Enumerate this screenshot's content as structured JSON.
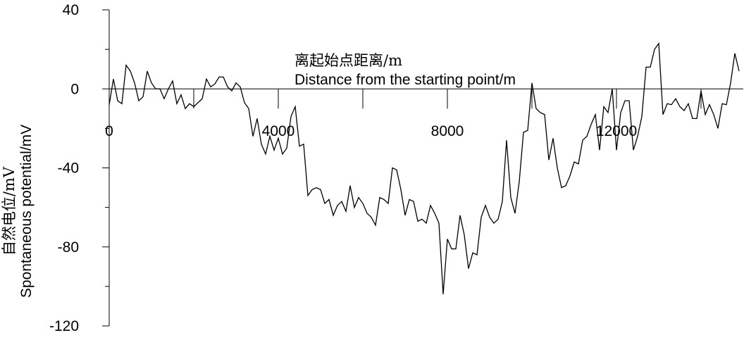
{
  "chart_data": {
    "type": "line",
    "x_label": [
      "离起始点距离/m",
      "Distance from the starting point/m"
    ],
    "y_label": [
      "自然电位/mV",
      "Spontaneous potential/mV"
    ],
    "xlim": [
      0,
      15000
    ],
    "xticks": [
      0,
      4000,
      8000,
      12000
    ],
    "xminor_ticks": [
      2000,
      6000,
      10000,
      14000
    ],
    "ylim": [
      -120,
      40
    ],
    "yticks": [
      40,
      0,
      -40,
      -80,
      -120
    ],
    "yminor_ticks": [
      20,
      -20,
      -60,
      -100
    ],
    "series": [
      {
        "color": "#000000",
        "x": [
          0,
          100,
          200,
          300,
          400,
          500,
          600,
          700,
          800,
          900,
          1000,
          1100,
          1200,
          1300,
          1400,
          1500,
          1600,
          1700,
          1800,
          1900,
          2000,
          2100,
          2200,
          2300,
          2400,
          2500,
          2600,
          2700,
          2800,
          2900,
          3000,
          3100,
          3200,
          3300,
          3400,
          3500,
          3600,
          3700,
          3800,
          3900,
          4000,
          4100,
          4200,
          4300,
          4400,
          4500,
          4600,
          4700,
          4800,
          4900,
          5000,
          5100,
          5200,
          5300,
          5400,
          5500,
          5600,
          5700,
          5800,
          5900,
          6000,
          6100,
          6200,
          6300,
          6400,
          6500,
          6600,
          6700,
          6800,
          6900,
          7000,
          7100,
          7200,
          7300,
          7400,
          7500,
          7600,
          7700,
          7800,
          7900,
          8000,
          8100,
          8200,
          8300,
          8400,
          8500,
          8600,
          8700,
          8800,
          8900,
          9000,
          9100,
          9200,
          9300,
          9400,
          9500,
          9600,
          9700,
          9800,
          9900,
          10000,
          10100,
          10200,
          10300,
          10400,
          10500,
          10600,
          10700,
          10800,
          10900,
          11000,
          11100,
          11200,
          11300,
          11400,
          11500,
          11600,
          11700,
          11800,
          11900,
          12000,
          12100,
          12200,
          12300,
          12400,
          12500,
          12600,
          12700,
          12800,
          12900,
          13000,
          13100,
          13200,
          13300,
          13400,
          13500,
          13600,
          13700,
          13800,
          13900,
          14000,
          14100,
          14200,
          14300,
          14400,
          14500,
          14600,
          14700,
          14800,
          14900
        ],
        "values": [
          -8,
          5,
          -6,
          -7.5,
          12,
          9,
          3,
          -6,
          -4,
          9,
          3,
          0,
          0,
          -5,
          0,
          4,
          -7.5,
          -3,
          -10,
          -7.5,
          -9,
          -7,
          -5,
          5,
          1,
          2.5,
          6,
          6,
          1,
          -1,
          3,
          1,
          -7,
          -10,
          -24,
          -15,
          -28,
          -33,
          -24,
          -31,
          -25,
          -33,
          -30,
          -14,
          -9,
          -29,
          -28,
          -54,
          -51,
          -50,
          -51,
          -58,
          -56,
          -64,
          -59,
          -57,
          -62,
          -49,
          -60,
          -55,
          -58,
          -63,
          -65,
          -69,
          -55,
          -56,
          -58,
          -40,
          -41,
          -51,
          -64,
          -56,
          -57,
          -67,
          -66,
          -68,
          -59,
          -63,
          -68,
          -104,
          -76,
          -81,
          -81,
          -64,
          -74,
          -91,
          -83,
          -84,
          -65,
          -59,
          -65,
          -68,
          -66,
          -57,
          -26,
          -55,
          -63,
          -47,
          -22,
          -21,
          3,
          -10,
          -12,
          -13,
          -36,
          -25,
          -40,
          -50,
          -49,
          -44,
          -37,
          -38,
          -26,
          -24,
          -18,
          -13,
          -31,
          -9,
          -12,
          0,
          -31,
          -12,
          -6,
          -6,
          -31,
          -24,
          -14,
          11,
          11,
          20,
          23,
          -13,
          -7.5,
          -8,
          -5,
          -9,
          -11,
          -7.5,
          -15,
          -15,
          -1,
          -13,
          -8,
          -13,
          -20,
          -7.5,
          -8,
          3,
          18,
          9
        ]
      }
    ]
  }
}
